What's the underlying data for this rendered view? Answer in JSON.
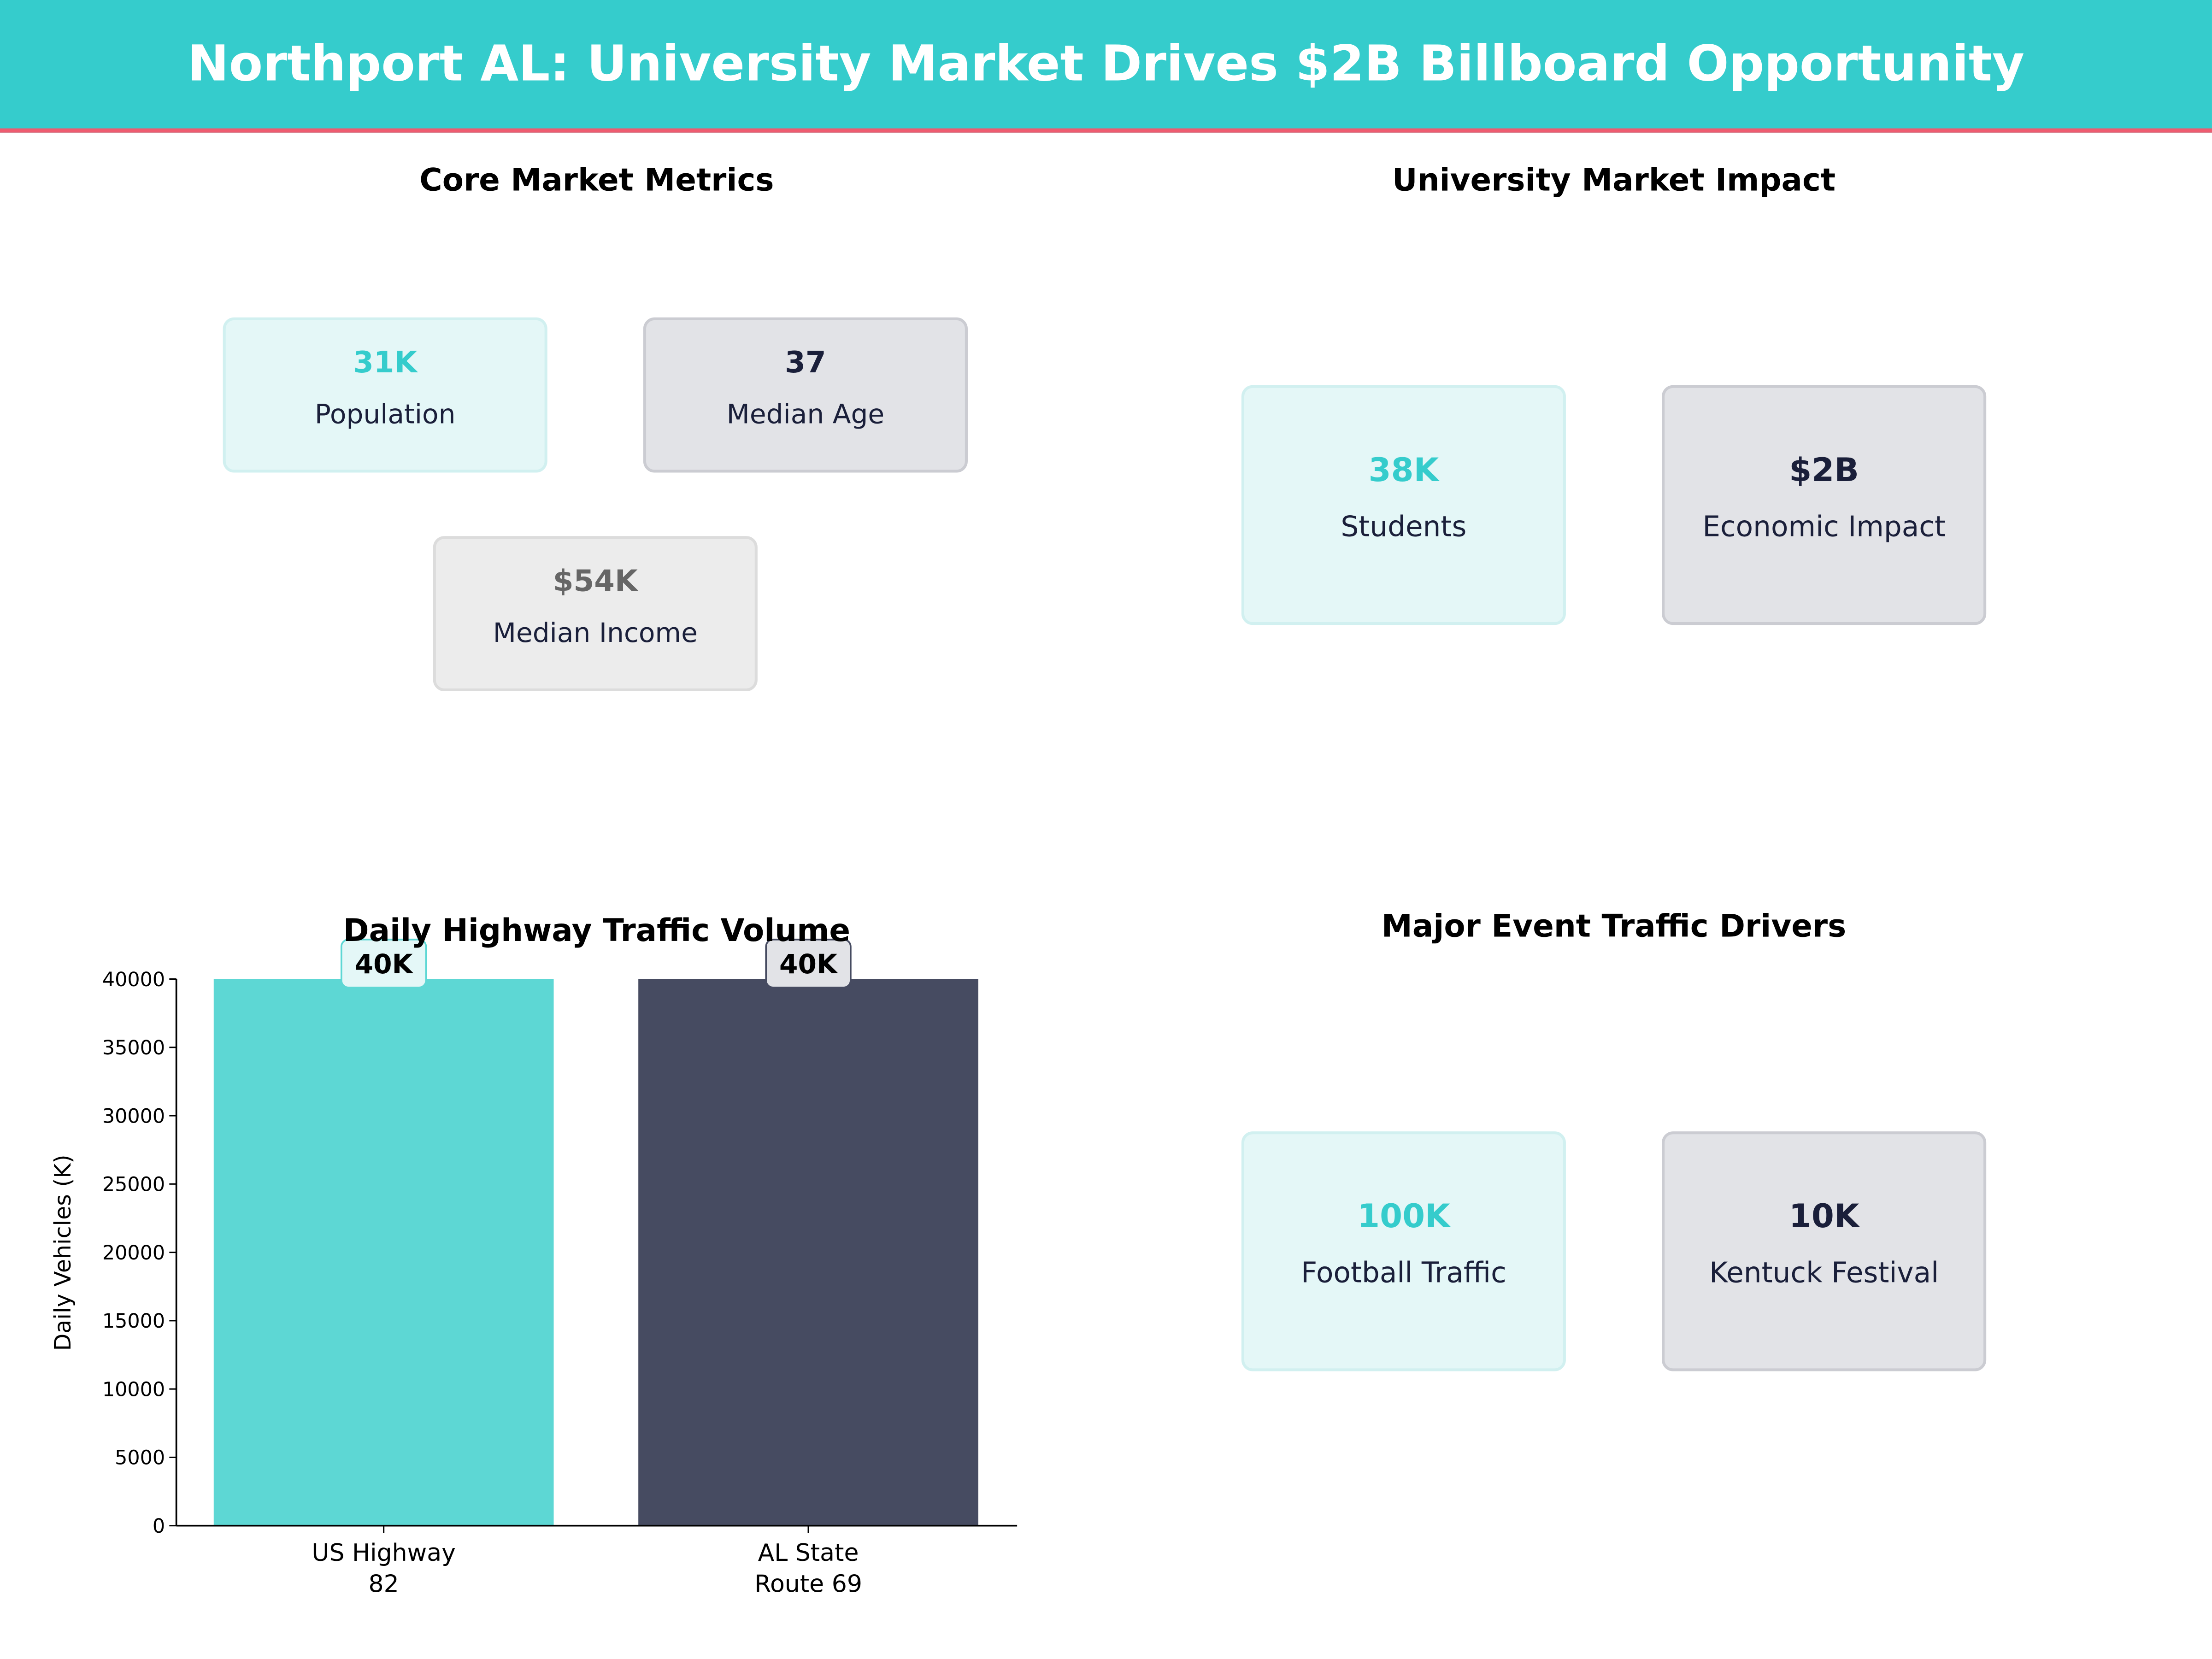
{
  "title": "Northport AL: University Market Drives $2B Billboard Opportunity",
  "colors": {
    "header": "#35cccc",
    "accent_line": "#ee5c70",
    "teal": "#5dd7d4",
    "navy": "#464b61"
  },
  "core_metrics": {
    "title": "Core Market Metrics",
    "cards": [
      {
        "value": "31K",
        "label": "Population"
      },
      {
        "value": "37",
        "label": "Median Age"
      },
      {
        "value": "$54K",
        "label": "Median Income"
      }
    ]
  },
  "university": {
    "title": "University Market Impact",
    "cards": [
      {
        "value": "38K",
        "label": "Students"
      },
      {
        "value": "$2B",
        "label": "Economic Impact"
      }
    ]
  },
  "events": {
    "title": "Major Event Traffic Drivers",
    "cards": [
      {
        "value": "100K",
        "label": "Football Traffic"
      },
      {
        "value": "10K",
        "label": "Kentuck Festival"
      }
    ]
  },
  "chart_data": {
    "type": "bar",
    "title": "Daily Highway Traffic Volume",
    "categories": [
      [
        "US Highway",
        "82"
      ],
      [
        "AL State",
        "Route 69"
      ]
    ],
    "values": [
      40000,
      40000
    ],
    "data_labels": [
      "40K",
      "40K"
    ],
    "colors": [
      "#5dd7d4",
      "#464b61"
    ],
    "xlabel": "",
    "ylabel": "Daily Vehicles (K)",
    "ylim": [
      0,
      40000
    ],
    "yticks": [
      0,
      5000,
      10000,
      15000,
      20000,
      25000,
      30000,
      35000,
      40000
    ],
    "grid": false
  }
}
